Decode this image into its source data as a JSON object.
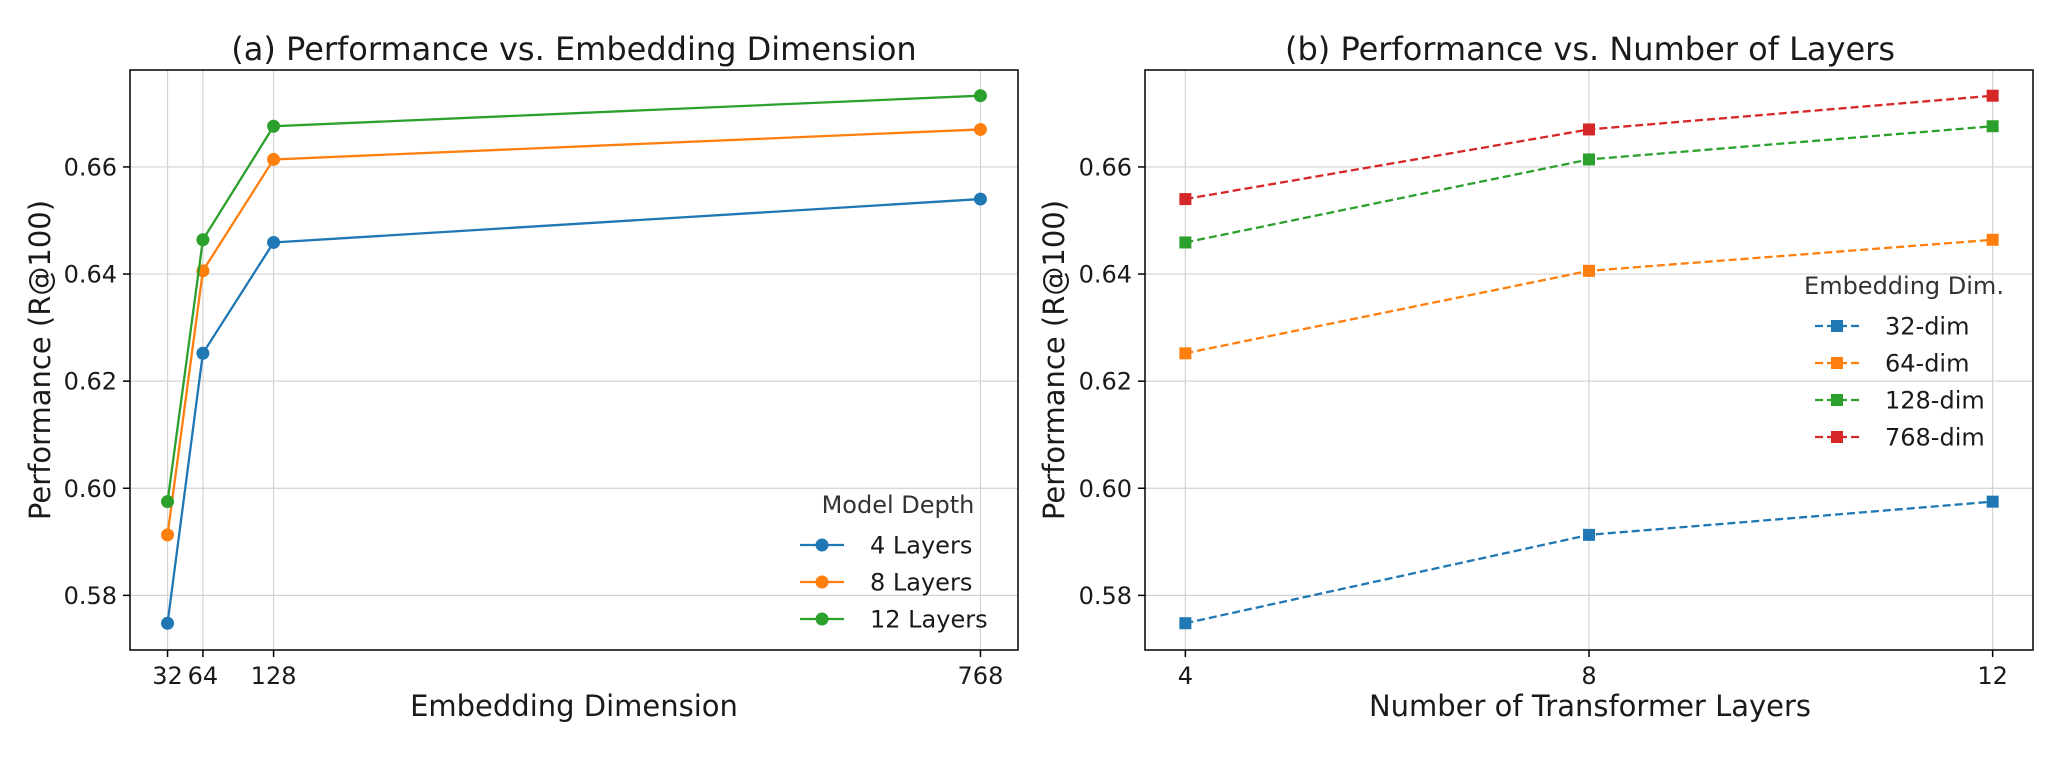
{
  "chart_data": [
    {
      "type": "line",
      "title": "(a) Performance vs. Embedding Dimension",
      "xlabel": "Embedding Dimension",
      "ylabel": "Performance (R@100)",
      "x": [
        32,
        64,
        128,
        768
      ],
      "xticks": [
        32,
        64,
        128,
        768
      ],
      "xtick_labels": [
        "32",
        "64",
        "128",
        "768"
      ],
      "xlim": [
        -2,
        802
      ],
      "ylim": [
        0.5698,
        0.6781
      ],
      "yticks": [
        0.58,
        0.6,
        0.62,
        0.64,
        0.66
      ],
      "ytick_labels": [
        "0.58",
        "0.60",
        "0.62",
        "0.64",
        "0.66"
      ],
      "grid": true,
      "marker": "circle",
      "line_style": "solid",
      "legend": {
        "title": "Model Depth",
        "placement": "lower-right"
      },
      "series": [
        {
          "name": "4 Layers",
          "color": "#1f77b4",
          "values": [
            0.5748,
            0.6252,
            0.6459,
            0.654
          ]
        },
        {
          "name": "8 Layers",
          "color": "#ff7f0e",
          "values": [
            0.5913,
            0.6406,
            0.6614,
            0.667
          ]
        },
        {
          "name": "12 Layers",
          "color": "#2ca02c",
          "values": [
            0.5975,
            0.6464,
            0.6676,
            0.6733
          ]
        }
      ]
    },
    {
      "type": "line",
      "title": "(b) Performance vs. Number of Layers",
      "xlabel": "Number of Transformer Layers",
      "ylabel": "Performance (R@100)",
      "x": [
        4,
        8,
        12
      ],
      "xticks": [
        4,
        8,
        12
      ],
      "xtick_labels": [
        "4",
        "8",
        "12"
      ],
      "xlim": [
        3.6,
        12.4
      ],
      "ylim": [
        0.5698,
        0.6781
      ],
      "yticks": [
        0.58,
        0.6,
        0.62,
        0.64,
        0.66
      ],
      "ytick_labels": [
        "0.58",
        "0.60",
        "0.62",
        "0.64",
        "0.66"
      ],
      "grid": true,
      "marker": "square",
      "line_style": "dashed",
      "legend": {
        "title": "Embedding Dim.",
        "placement": "center-right"
      },
      "series": [
        {
          "name": "32-dim",
          "color": "#1f77b4",
          "values": [
            0.5748,
            0.5913,
            0.5975
          ]
        },
        {
          "name": "64-dim",
          "color": "#ff7f0e",
          "values": [
            0.6252,
            0.6406,
            0.6464
          ]
        },
        {
          "name": "128-dim",
          "color": "#2ca02c",
          "values": [
            0.6459,
            0.6614,
            0.6676
          ]
        },
        {
          "name": "768-dim",
          "color": "#d62728",
          "values": [
            0.654,
            0.667,
            0.6733
          ]
        }
      ]
    }
  ]
}
